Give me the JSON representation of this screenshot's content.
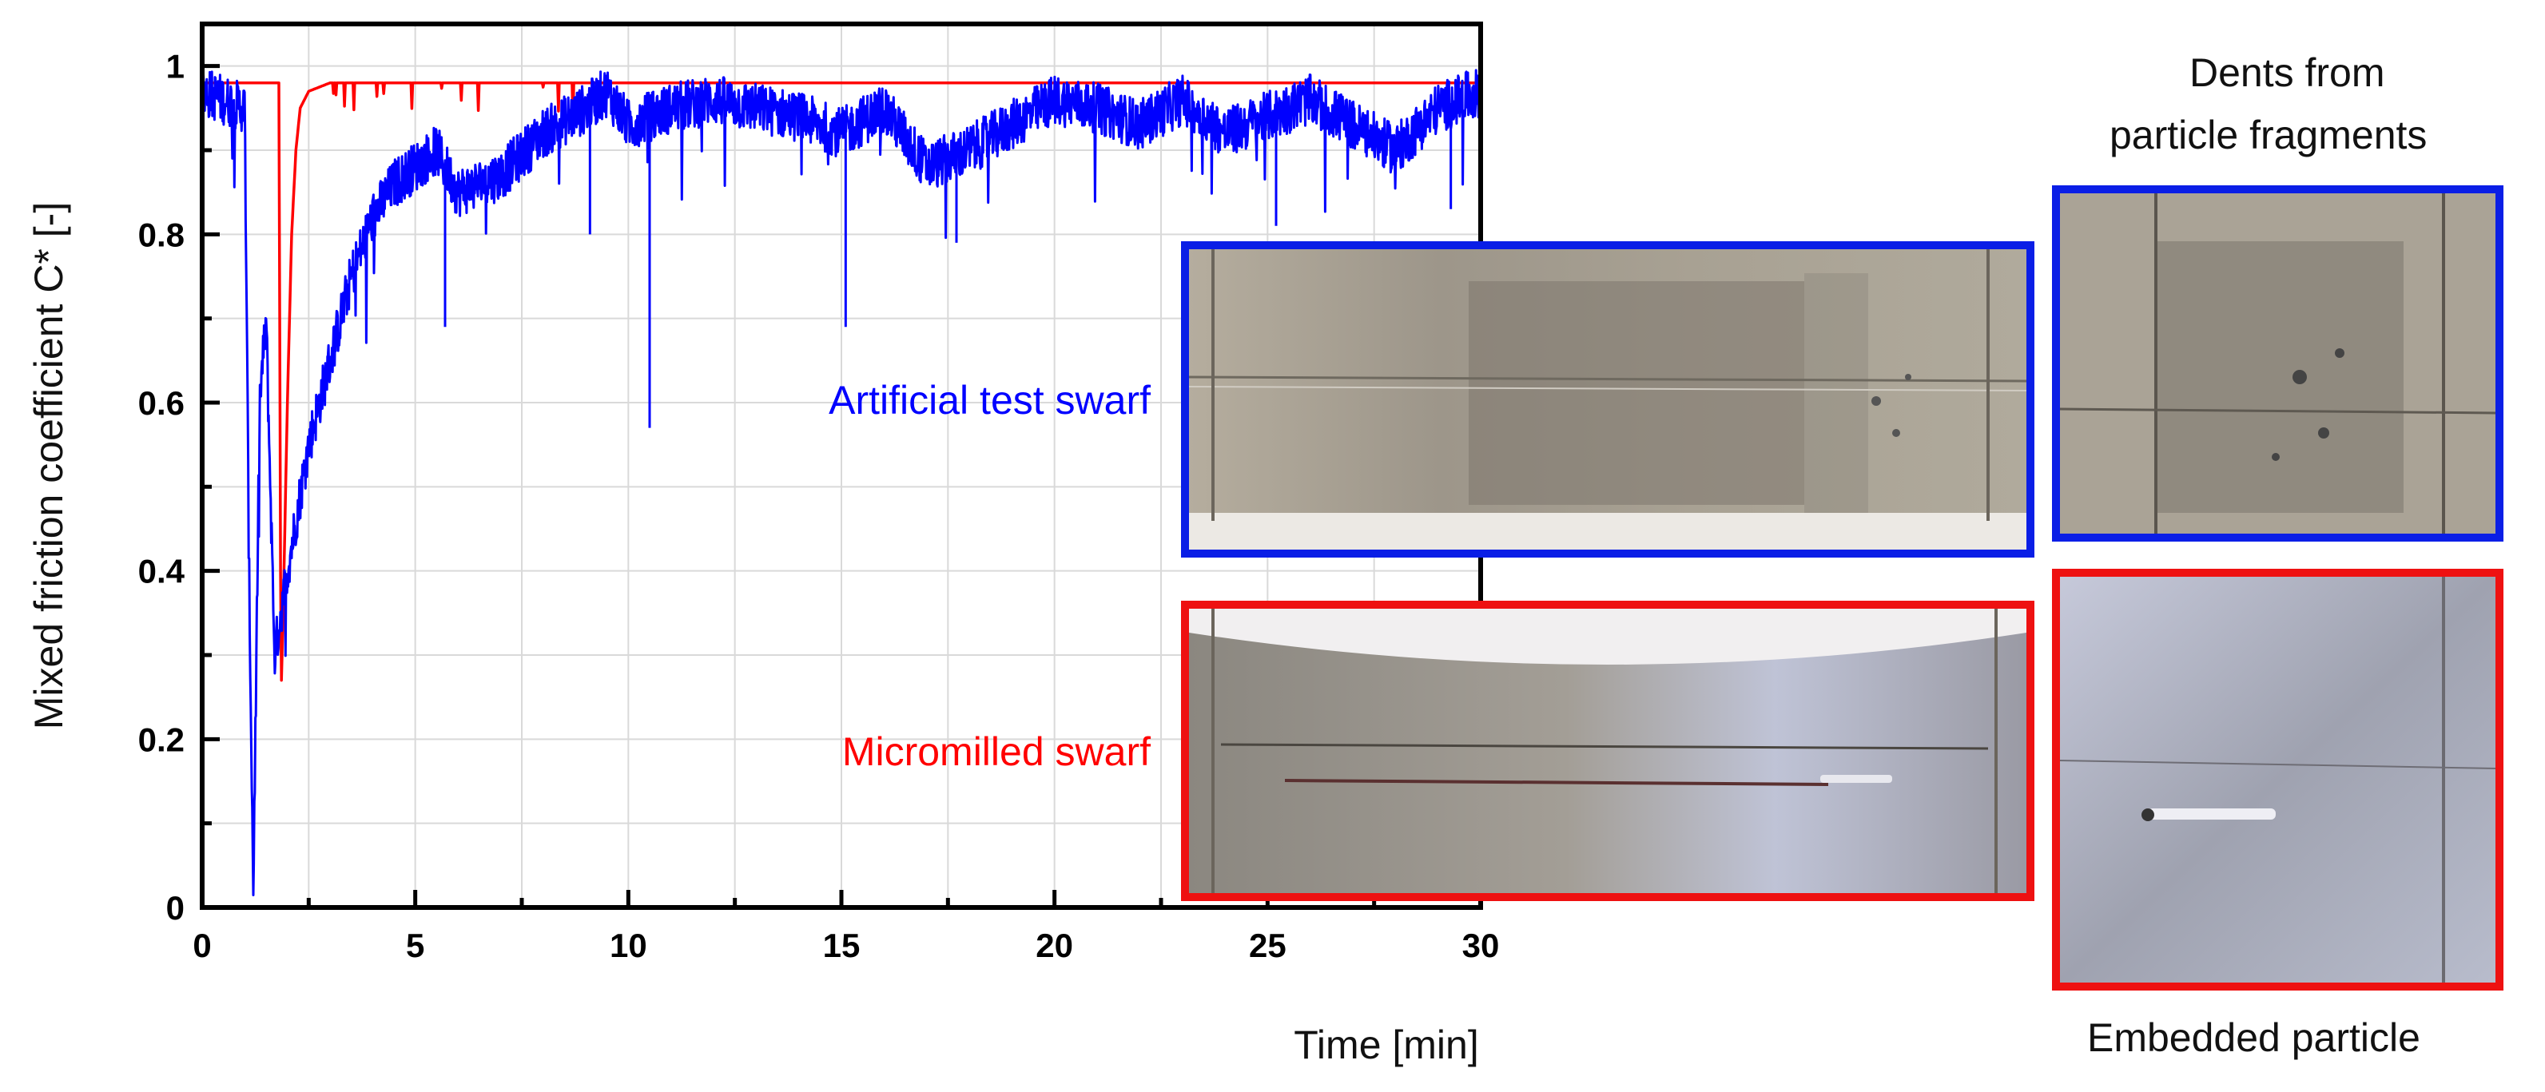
{
  "chart_data": {
    "type": "line",
    "xlabel": "Time [min]",
    "ylabel": "Mixed friction coefficient C* [-]",
    "xlim": [
      0,
      30
    ],
    "ylim": [
      0,
      1.05
    ],
    "xticks": [
      0,
      5,
      10,
      15,
      20,
      25,
      30
    ],
    "yticks": [
      0,
      0.2,
      0.4,
      0.6,
      0.8,
      1
    ],
    "ytick_labels": [
      "0",
      "0.2",
      "0.4",
      "0.6",
      "0.8",
      "1"
    ],
    "grid": true,
    "series": [
      {
        "name": "Micromilled swarf",
        "color": "#ff0000",
        "x": [
          0,
          1.0,
          1.8,
          1.85,
          1.9,
          2.0,
          2.1,
          2.2,
          2.3,
          2.5,
          3,
          5,
          10,
          15,
          20,
          25,
          30
        ],
        "y": [
          0.98,
          0.98,
          0.98,
          0.25,
          0.35,
          0.6,
          0.8,
          0.9,
          0.95,
          0.97,
          0.98,
          0.98,
          0.98,
          0.98,
          0.98,
          0.98,
          0.98
        ]
      },
      {
        "name": "Artificial test swarf",
        "color": "#0000ff",
        "x": [
          0,
          0.5,
          1.0,
          1.1,
          1.2,
          1.35,
          1.5,
          1.7,
          2.0,
          2.5,
          3,
          3.5,
          4,
          4.5,
          5,
          5.5,
          6,
          7,
          8,
          9,
          9.5,
          10,
          10.5,
          11,
          12,
          13,
          14,
          15,
          16,
          17,
          18,
          19,
          20,
          21,
          22,
          23,
          24,
          25,
          26,
          27,
          28,
          29,
          30
        ],
        "y": [
          0.97,
          0.96,
          0.95,
          0.4,
          0.02,
          0.6,
          0.7,
          0.3,
          0.4,
          0.55,
          0.65,
          0.75,
          0.82,
          0.86,
          0.88,
          0.9,
          0.85,
          0.87,
          0.92,
          0.95,
          0.97,
          0.93,
          0.94,
          0.95,
          0.96,
          0.95,
          0.94,
          0.92,
          0.95,
          0.88,
          0.9,
          0.93,
          0.96,
          0.95,
          0.93,
          0.96,
          0.92,
          0.94,
          0.96,
          0.93,
          0.9,
          0.95,
          0.97
        ]
      }
    ],
    "annotations": [
      {
        "text": "Artificial test swarf",
        "color": "#0000ff"
      },
      {
        "text": "Micromilled swarf",
        "color": "#ff0000"
      }
    ]
  },
  "photo_captions": {
    "dents": "Dents from\nparticle fragments",
    "dents_line1": "Dents from",
    "dents_line2": "particle fragments",
    "embedded": "Embedded particle"
  },
  "colors": {
    "blue": "#0000ff",
    "red": "#ff0000",
    "frame_blue": "#0a1ee6",
    "frame_red": "#ee1111"
  }
}
